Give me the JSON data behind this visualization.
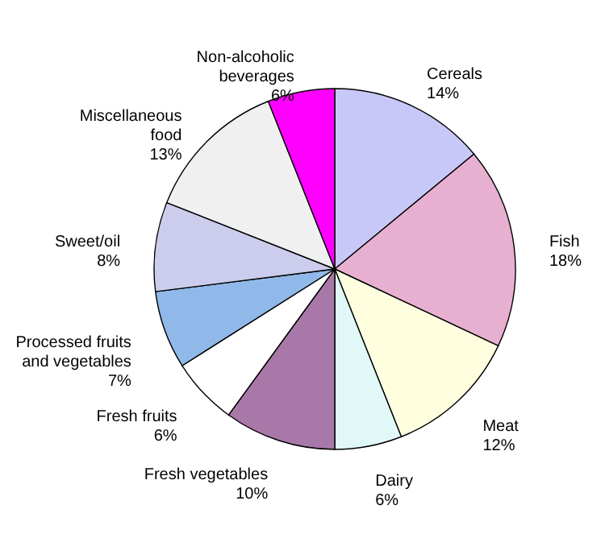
{
  "chart_data": {
    "type": "pie",
    "categories": [
      "Cereals",
      "Fish",
      "Meat",
      "Dairy",
      "Fresh vegetables",
      "Fresh fruits",
      "Processed fruits and vegetables",
      "Sweet/oil",
      "Miscellaneous food",
      "Non-alcoholic beverages"
    ],
    "values": [
      14,
      18,
      12,
      6,
      10,
      6,
      7,
      8,
      13,
      6
    ],
    "value_labels": [
      "14%",
      "18%",
      "12%",
      "6%",
      "10%",
      "6%",
      "7%",
      "8%",
      "13%",
      "6%"
    ],
    "colors": [
      "#c8c8f8",
      "#e8b0d0",
      "#ffffe0",
      "#e0f8f8",
      "#a878a8",
      "#ffffff",
      "#90b8e8",
      "#ccccec",
      "#f0f0f0",
      "#ff00ff"
    ]
  }
}
